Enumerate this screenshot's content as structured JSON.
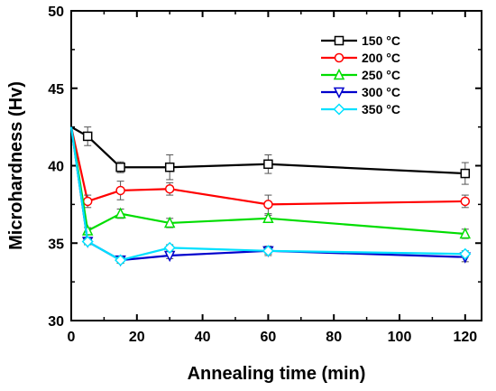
{
  "chart_data": {
    "type": "line",
    "xlabel": "Annealing time (min)",
    "ylabel": "Microhardness (Hv)",
    "xlim": [
      0,
      125
    ],
    "ylim": [
      30,
      50
    ],
    "x_ticks": [
      0,
      20,
      40,
      60,
      80,
      100,
      120
    ],
    "y_ticks": [
      30,
      35,
      40,
      45,
      50
    ],
    "grid": false,
    "legend_position": "top-right",
    "x": [
      0,
      5,
      15,
      30,
      60,
      120
    ],
    "series": [
      {
        "name": "150 °C",
        "color": "#000000",
        "marker": "square",
        "values": [
          42.5,
          41.9,
          39.9,
          39.9,
          40.1,
          39.5
        ],
        "errors": [
          0.0,
          0.6,
          0.35,
          0.8,
          0.6,
          0.7
        ]
      },
      {
        "name": "200 °C",
        "color": "#ff0000",
        "marker": "circle",
        "values": [
          42.5,
          37.7,
          38.4,
          38.5,
          37.5,
          37.7
        ],
        "errors": [
          0.0,
          0.4,
          0.6,
          0.4,
          0.6,
          0.4
        ]
      },
      {
        "name": "250 °C",
        "color": "#00dd00",
        "marker": "triangle-up",
        "values": [
          42.5,
          35.8,
          36.9,
          36.3,
          36.6,
          35.6
        ],
        "errors": [
          0.0,
          0.2,
          0.3,
          0.3,
          0.2,
          0.3
        ]
      },
      {
        "name": "300 °C",
        "color": "#0000cc",
        "marker": "triangle-down",
        "values": [
          42.5,
          35.1,
          33.9,
          34.2,
          34.5,
          34.1
        ],
        "errors": [
          0.0,
          0.2,
          0.2,
          0.2,
          0.3,
          0.3
        ]
      },
      {
        "name": "350 °C",
        "color": "#00e0ff",
        "marker": "diamond",
        "values": [
          42.5,
          35.1,
          33.9,
          34.7,
          34.5,
          34.3
        ],
        "errors": [
          0.0,
          0.2,
          0.2,
          0.2,
          0.2,
          0.2
        ]
      }
    ]
  }
}
